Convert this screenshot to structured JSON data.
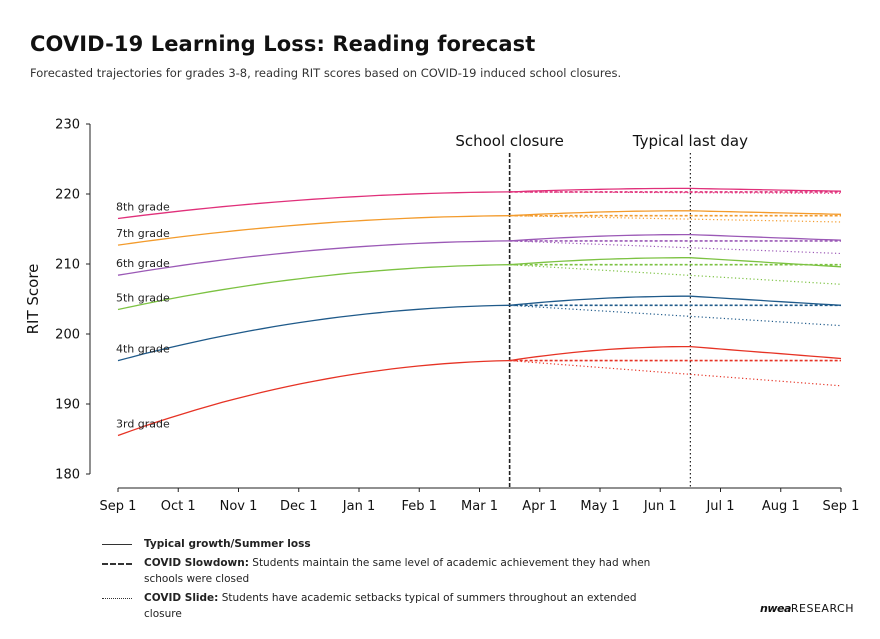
{
  "title": "COVID-19 Learning Loss: Reading forecast",
  "subtitle": "Forecasted trajectories for grades 3-8, reading RIT scores based on COVID-19 induced school closures.",
  "chart_data": {
    "type": "line",
    "ylabel": "RIT Score",
    "xlabel": "",
    "ylim": [
      180,
      230
    ],
    "yticks": [
      180,
      190,
      200,
      210,
      220,
      230
    ],
    "x_categories": [
      "Sep 1",
      "Oct 1",
      "Nov 1",
      "Dec 1",
      "Jan 1",
      "Feb 1",
      "Mar 1",
      "Apr 1",
      "May 1",
      "Jun 1",
      "Jul 1",
      "Aug 1",
      "Sep 1"
    ],
    "annotations": [
      {
        "label": "School closure",
        "x_month": 6.5,
        "style": "dashed"
      },
      {
        "label": "Typical last day",
        "x_month": 9.5,
        "style": "dotted"
      }
    ],
    "series": [
      {
        "name": "8th grade",
        "color": "#e0307a",
        "start": 216.5,
        "closure": 220.3,
        "peak": 220.8,
        "typical_end": 220.4,
        "slowdown_end": 220.3,
        "slide_end": 220.1
      },
      {
        "name": "7th grade",
        "color": "#f39b2c",
        "start": 212.7,
        "closure": 216.9,
        "peak": 217.6,
        "typical_end": 217.1,
        "slowdown_end": 216.9,
        "slide_end": 216.0
      },
      {
        "name": "6th grade",
        "color": "#9b59b6",
        "start": 208.4,
        "closure": 213.3,
        "peak": 214.2,
        "typical_end": 213.4,
        "slowdown_end": 213.3,
        "slide_end": 211.5
      },
      {
        "name": "5th grade",
        "color": "#7cc242",
        "start": 203.5,
        "closure": 209.9,
        "peak": 210.9,
        "typical_end": 209.6,
        "slowdown_end": 209.9,
        "slide_end": 207.1
      },
      {
        "name": "4th grade",
        "color": "#1f5a8a",
        "start": 196.2,
        "closure": 204.1,
        "peak": 205.4,
        "typical_end": 204.1,
        "slowdown_end": 204.1,
        "slide_end": 201.2
      },
      {
        "name": "3rd grade",
        "color": "#e63325",
        "start": 185.5,
        "closure": 196.2,
        "peak": 198.2,
        "typical_end": 196.5,
        "slowdown_end": 196.2,
        "slide_end": 192.6
      }
    ]
  },
  "legend": {
    "items": [
      {
        "bold": "Typical growth/Summer loss",
        "text": ""
      },
      {
        "bold": "COVID Slowdown:",
        "text": " Students maintain the same level of academic achievement they had when schools were closed"
      },
      {
        "bold": "COVID Slide:",
        "text": " Students have academic setbacks typical of summers throughout an extended closure"
      }
    ]
  },
  "brand": {
    "logo": "nwea",
    "text": "RESEARCH"
  }
}
